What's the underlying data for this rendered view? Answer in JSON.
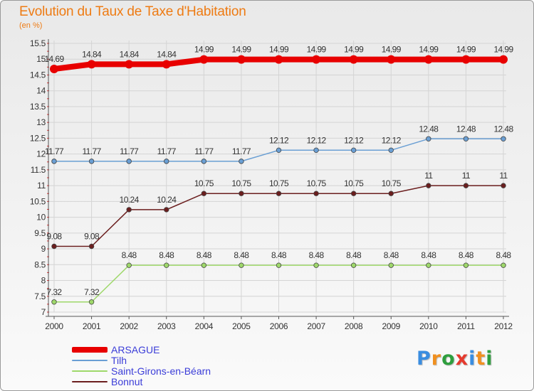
{
  "title": "Evolution du Taux de Taxe d'Habitation",
  "subtitle": "(en %)",
  "logo": {
    "text": "Proxiti",
    "colors": [
      "#3a8de0",
      "#f09020",
      "#2e9e3e",
      "#e53a2e",
      "#3a8de0",
      "#f09020",
      "#2e9e3e"
    ]
  },
  "chart_data": {
    "type": "line",
    "x": [
      "2000",
      "2001",
      "2002",
      "2003",
      "2004",
      "2005",
      "2006",
      "2007",
      "2008",
      "2009",
      "2010",
      "2011",
      "2012"
    ],
    "ylim": [
      7,
      15.5
    ],
    "yticks": [
      "7",
      "7.5",
      "8",
      "8.5",
      "9",
      "9.5",
      "10",
      "10.5",
      "11",
      "11.5",
      "12",
      "12.5",
      "13",
      "13.5",
      "14",
      "14.5",
      "15",
      "15.5"
    ],
    "grid": true,
    "legend_position": "bottom-left",
    "series": [
      {
        "name": "ARSAGUE",
        "color": "#e80000",
        "values": [
          14.69,
          14.84,
          14.84,
          14.84,
          14.99,
          14.99,
          14.99,
          14.99,
          14.99,
          14.99,
          14.99,
          14.99,
          14.99
        ],
        "labels": [
          "14.69",
          "14.84",
          "14.84",
          "14.84",
          "14.99",
          "14.99",
          "14.99",
          "14.99",
          "14.99",
          "14.99",
          "14.99",
          "14.99",
          "14.99"
        ]
      },
      {
        "name": "Tilh",
        "color": "#6a9fd4",
        "values": [
          11.77,
          11.77,
          11.77,
          11.77,
          11.77,
          11.77,
          12.12,
          12.12,
          12.12,
          12.12,
          12.48,
          12.48,
          12.48
        ],
        "labels": [
          "11.77",
          "11.77",
          "11.77",
          "11.77",
          "11.77",
          "11.77",
          "12.12",
          "12.12",
          "12.12",
          "12.12",
          "12.48",
          "12.48",
          "12.48"
        ]
      },
      {
        "name": "Saint-Girons-en-Béarn",
        "color": "#9ed86a",
        "values": [
          7.32,
          7.32,
          8.48,
          8.48,
          8.48,
          8.48,
          8.48,
          8.48,
          8.48,
          8.48,
          8.48,
          8.48,
          8.48
        ],
        "labels": [
          "7.32",
          "7.32",
          "8.48",
          "8.48",
          "8.48",
          "8.48",
          "8.48",
          "8.48",
          "8.48",
          "8.48",
          "8.48",
          "8.48",
          "8.48"
        ]
      },
      {
        "name": "Bonnut",
        "color": "#6b1e1e",
        "values": [
          9.08,
          9.08,
          10.24,
          10.24,
          10.75,
          10.75,
          10.75,
          10.75,
          10.75,
          10.75,
          11,
          11,
          11
        ],
        "labels": [
          "9.08",
          "9.08",
          "10.24",
          "10.24",
          "10.75",
          "10.75",
          "10.75",
          "10.75",
          "10.75",
          "10.75",
          "11",
          "11",
          "11"
        ]
      }
    ]
  }
}
